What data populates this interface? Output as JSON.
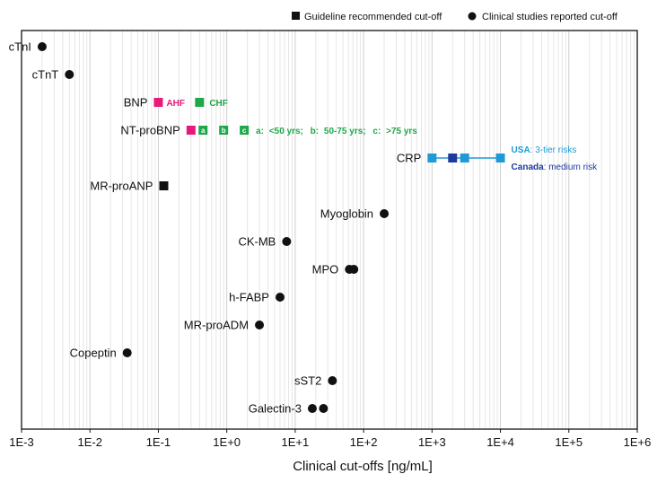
{
  "chart_data": {
    "type": "scatter",
    "xscale": "log",
    "xlim": [
      0.001,
      1000000
    ],
    "xlabel": "Clinical cut-offs [ng/mL]",
    "xticks": [
      "1E-3",
      "1E-2",
      "1E-1",
      "1E+0",
      "1E+1",
      "1E+2",
      "1E+3",
      "1E+4",
      "1E+5",
      "1E+6"
    ],
    "legend": {
      "position": "top-right",
      "square_label": "Guideline recommended cut-off",
      "circle_label": "Clinical studies reported cut-off"
    },
    "rows": [
      {
        "name": "cTnI",
        "points": [
          {
            "x": 0.002,
            "shape": "circle"
          }
        ]
      },
      {
        "name": "cTnT",
        "points": [
          {
            "x": 0.005,
            "shape": "circle"
          }
        ]
      },
      {
        "name": "BNP",
        "points": [
          {
            "x": 0.1,
            "shape": "square",
            "color": "#e8197a",
            "tag": "AHF"
          },
          {
            "x": 0.4,
            "shape": "square",
            "color": "#1fa84a",
            "tag": "CHF"
          }
        ]
      },
      {
        "name": "NT-proBNP",
        "points": [
          {
            "x": 0.3,
            "shape": "square",
            "color": "#e8197a"
          },
          {
            "x": 0.45,
            "shape": "square",
            "color": "#1fa84a",
            "tag": "a"
          },
          {
            "x": 0.9,
            "shape": "square",
            "color": "#1fa84a",
            "tag": "b"
          },
          {
            "x": 1.8,
            "shape": "square",
            "color": "#1fa84a",
            "tag": "c"
          }
        ]
      },
      {
        "name": "CRP",
        "points": [
          {
            "x": 1000,
            "shape": "square",
            "color": "#1e9ad6"
          },
          {
            "x": 2000,
            "shape": "square",
            "color": "#1f3a9e"
          },
          {
            "x": 3000,
            "shape": "square",
            "color": "#1e9ad6"
          },
          {
            "x": 10000,
            "shape": "square",
            "color": "#1e9ad6"
          }
        ]
      },
      {
        "name": "MR-proANP",
        "points": [
          {
            "x": 0.12,
            "shape": "square",
            "color": "#111111"
          }
        ]
      },
      {
        "name": "Myoglobin",
        "points": [
          {
            "x": 200,
            "shape": "circle"
          }
        ]
      },
      {
        "name": "CK-MB",
        "points": [
          {
            "x": 7.5,
            "shape": "circle"
          }
        ]
      },
      {
        "name": "MPO",
        "points": [
          {
            "x": 62,
            "shape": "circle"
          },
          {
            "x": 72,
            "shape": "circle"
          }
        ]
      },
      {
        "name": "h-FABP",
        "points": [
          {
            "x": 6,
            "shape": "circle"
          }
        ]
      },
      {
        "name": "MR-proADM",
        "points": [
          {
            "x": 3,
            "shape": "circle"
          }
        ]
      },
      {
        "name": "Copeptin",
        "points": [
          {
            "x": 0.035,
            "shape": "circle"
          }
        ]
      },
      {
        "name": "sST2",
        "points": [
          {
            "x": 35,
            "shape": "circle"
          }
        ]
      },
      {
        "name": "Galectin-3",
        "points": [
          {
            "x": 17.8,
            "shape": "circle"
          },
          {
            "x": 25.9,
            "shape": "circle"
          }
        ]
      }
    ],
    "annotations": {
      "bnp_ahf": "AHF",
      "bnp_chf": "CHF",
      "nt_tag_a": "a",
      "nt_tag_b": "b",
      "nt_tag_c": "c",
      "nt_age_a_key": "a:",
      "nt_age_a_val": "<50 yrs;",
      "nt_age_b_key": "b:",
      "nt_age_b_val": "50-75 yrs;",
      "nt_age_c_key": "c:",
      "nt_age_c_val": ">75 yrs",
      "crp_usa_key": "USA",
      "crp_usa_val": ": 3-tier risks",
      "crp_canada_key": "Canada",
      "crp_canada_val": ": medium risk"
    },
    "colors": {
      "ahf": "#e8197a",
      "chf": "#1fa84a",
      "usa": "#1e9ad6",
      "canada": "#1f3a9e",
      "guideline": "#111111"
    }
  }
}
